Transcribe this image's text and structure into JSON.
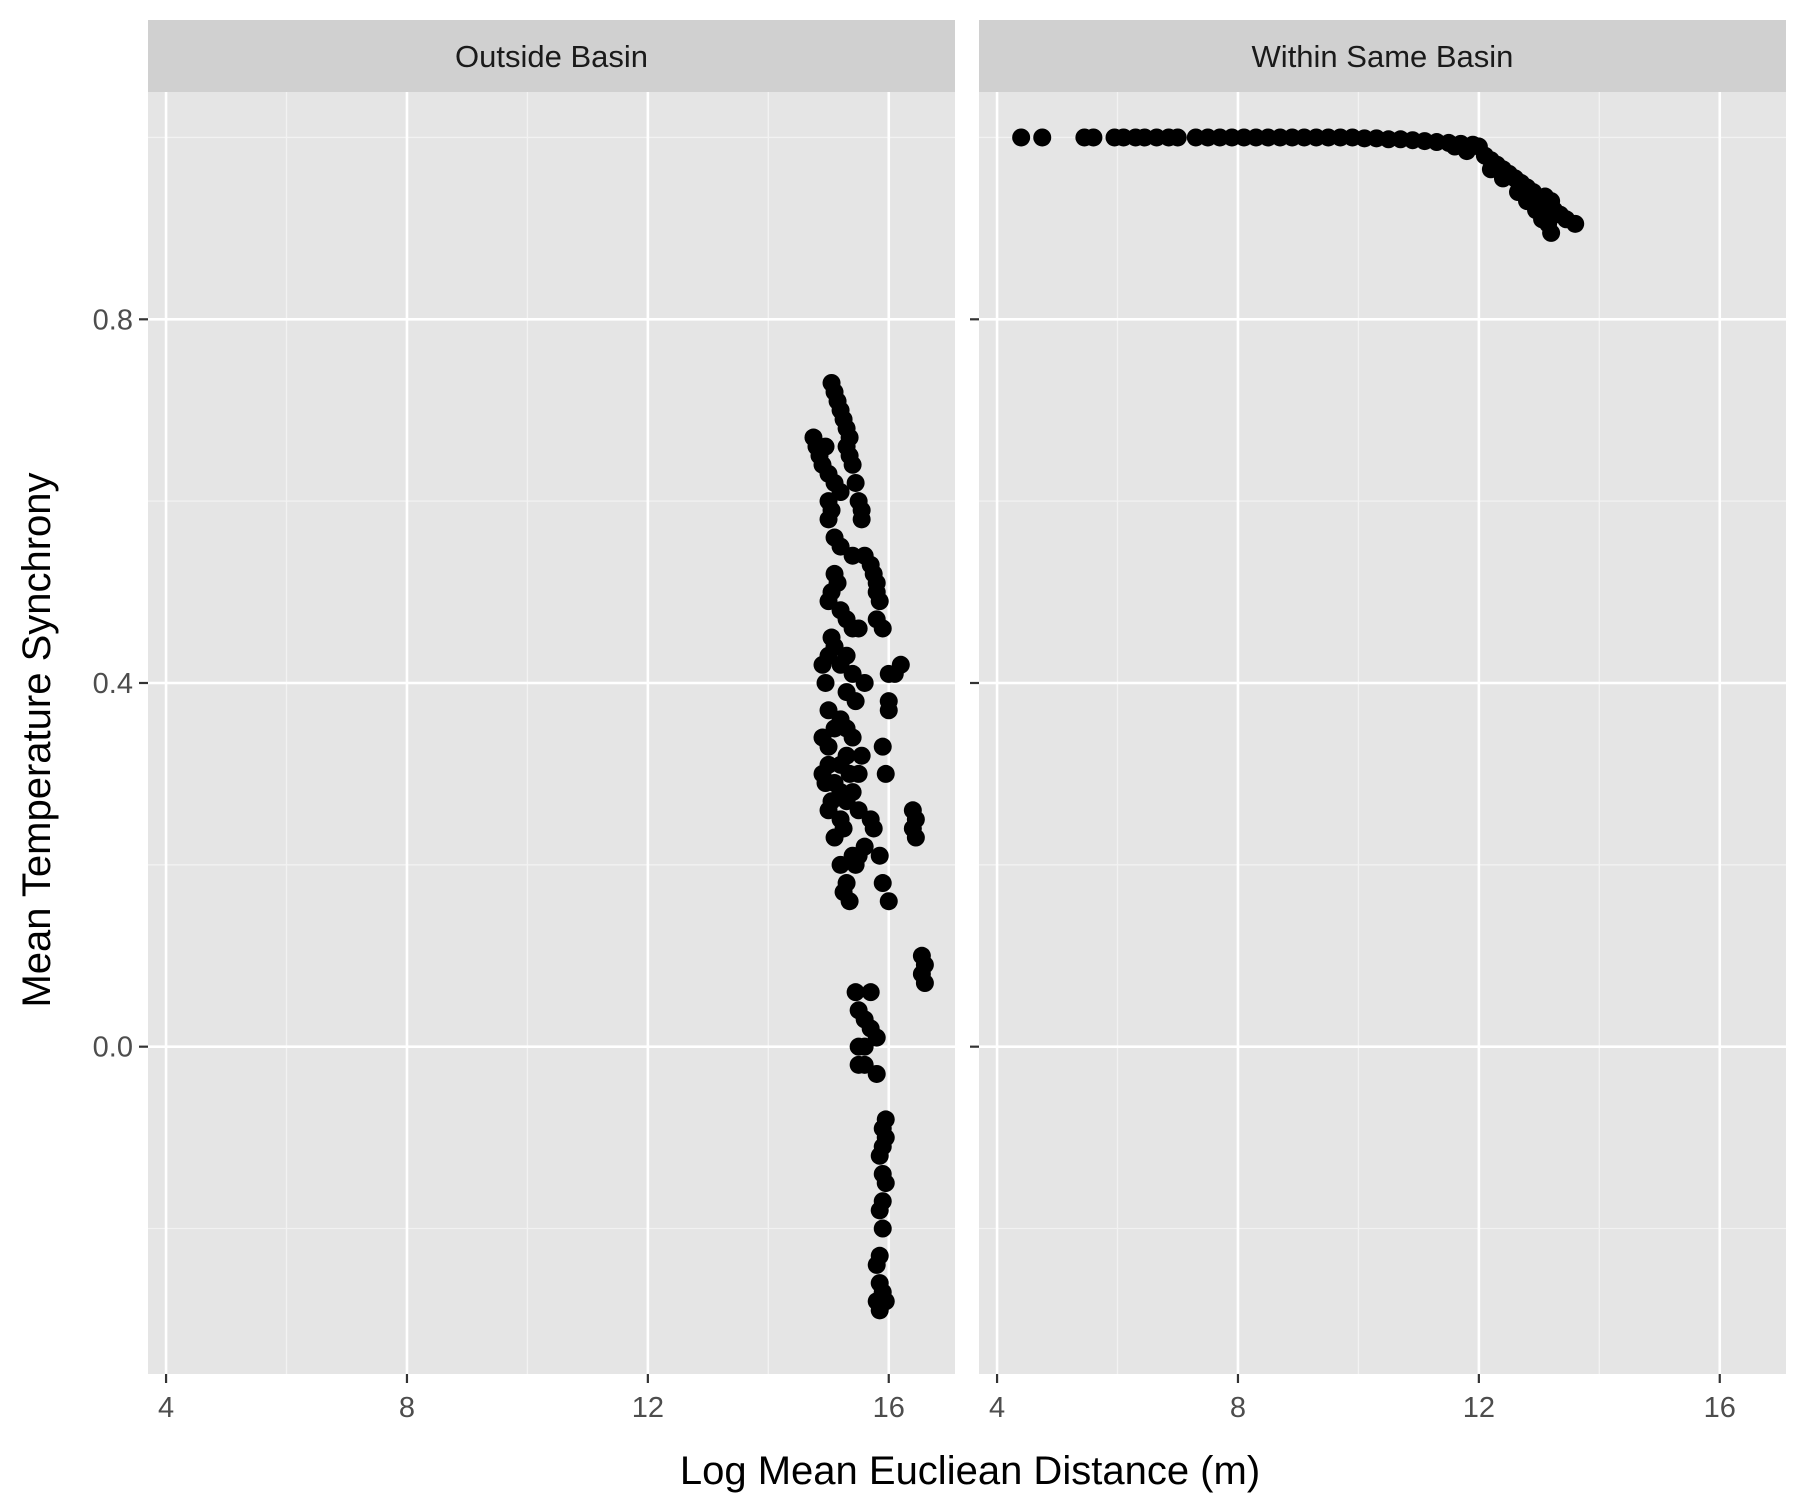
{
  "chart_data": {
    "type": "scatter",
    "xlabel": "Log Mean Eucliean Distance (m)",
    "ylabel": "Mean Temperature Synchrony",
    "xlim": [
      3.7,
      17.1
    ],
    "ylim": [
      -0.36,
      1.05
    ],
    "x_ticks": [
      4,
      8,
      12,
      16
    ],
    "x_tick_labels": [
      "4",
      "8",
      "12",
      "16"
    ],
    "y_ticks": [
      0.0,
      0.4,
      0.8
    ],
    "y_tick_labels": [
      "0.0",
      "0.4",
      "0.8"
    ],
    "grid": true,
    "point_color": "#000000",
    "panel_background": "#e5e5e5",
    "strip_background": "#d0d0d0",
    "panels": [
      {
        "title": "Outside Basin",
        "points": [
          [
            14.75,
            0.67
          ],
          [
            14.8,
            0.66
          ],
          [
            14.85,
            0.65
          ],
          [
            14.9,
            0.64
          ],
          [
            14.95,
            0.66
          ],
          [
            15.0,
            0.63
          ],
          [
            15.05,
            0.73
          ],
          [
            15.1,
            0.72
          ],
          [
            15.15,
            0.71
          ],
          [
            15.2,
            0.7
          ],
          [
            15.25,
            0.69
          ],
          [
            15.3,
            0.68
          ],
          [
            15.35,
            0.67
          ],
          [
            15.3,
            0.66
          ],
          [
            15.35,
            0.65
          ],
          [
            15.4,
            0.64
          ],
          [
            15.45,
            0.62
          ],
          [
            15.5,
            0.6
          ],
          [
            15.55,
            0.59
          ],
          [
            15.55,
            0.58
          ],
          [
            15.1,
            0.62
          ],
          [
            15.2,
            0.61
          ],
          [
            15.0,
            0.6
          ],
          [
            15.05,
            0.59
          ],
          [
            15.0,
            0.58
          ],
          [
            15.1,
            0.56
          ],
          [
            15.2,
            0.55
          ],
          [
            15.4,
            0.54
          ],
          [
            15.6,
            0.54
          ],
          [
            15.7,
            0.53
          ],
          [
            15.75,
            0.52
          ],
          [
            15.8,
            0.51
          ],
          [
            15.8,
            0.5
          ],
          [
            15.85,
            0.49
          ],
          [
            15.1,
            0.52
          ],
          [
            15.15,
            0.51
          ],
          [
            15.05,
            0.5
          ],
          [
            15.0,
            0.49
          ],
          [
            15.2,
            0.48
          ],
          [
            15.3,
            0.47
          ],
          [
            15.4,
            0.46
          ],
          [
            15.5,
            0.46
          ],
          [
            15.8,
            0.47
          ],
          [
            15.9,
            0.46
          ],
          [
            15.05,
            0.45
          ],
          [
            15.1,
            0.44
          ],
          [
            15.0,
            0.43
          ],
          [
            15.3,
            0.43
          ],
          [
            15.2,
            0.42
          ],
          [
            14.9,
            0.42
          ],
          [
            15.4,
            0.41
          ],
          [
            15.6,
            0.4
          ],
          [
            16.0,
            0.41
          ],
          [
            16.1,
            0.41
          ],
          [
            16.2,
            0.42
          ],
          [
            14.95,
            0.4
          ],
          [
            15.3,
            0.39
          ],
          [
            15.45,
            0.38
          ],
          [
            16.0,
            0.38
          ],
          [
            16.0,
            0.37
          ],
          [
            15.0,
            0.37
          ],
          [
            15.2,
            0.36
          ],
          [
            15.3,
            0.35
          ],
          [
            15.1,
            0.35
          ],
          [
            14.9,
            0.34
          ],
          [
            15.4,
            0.34
          ],
          [
            15.0,
            0.33
          ],
          [
            15.3,
            0.32
          ],
          [
            15.55,
            0.32
          ],
          [
            15.9,
            0.33
          ],
          [
            15.2,
            0.31
          ],
          [
            15.0,
            0.31
          ],
          [
            14.9,
            0.3
          ],
          [
            15.35,
            0.3
          ],
          [
            15.5,
            0.3
          ],
          [
            15.95,
            0.3
          ],
          [
            14.95,
            0.29
          ],
          [
            15.1,
            0.29
          ],
          [
            15.2,
            0.28
          ],
          [
            15.4,
            0.28
          ],
          [
            15.05,
            0.27
          ],
          [
            15.3,
            0.27
          ],
          [
            15.0,
            0.26
          ],
          [
            15.2,
            0.25
          ],
          [
            15.5,
            0.26
          ],
          [
            15.7,
            0.25
          ],
          [
            15.75,
            0.24
          ],
          [
            15.25,
            0.24
          ],
          [
            15.1,
            0.23
          ],
          [
            15.6,
            0.22
          ],
          [
            15.4,
            0.21
          ],
          [
            15.5,
            0.21
          ],
          [
            15.2,
            0.2
          ],
          [
            15.45,
            0.2
          ],
          [
            15.3,
            0.18
          ],
          [
            15.25,
            0.17
          ],
          [
            15.35,
            0.16
          ],
          [
            15.85,
            0.21
          ],
          [
            15.9,
            0.18
          ],
          [
            16.0,
            0.16
          ],
          [
            16.4,
            0.26
          ],
          [
            16.45,
            0.25
          ],
          [
            16.4,
            0.24
          ],
          [
            16.45,
            0.23
          ],
          [
            16.55,
            0.1
          ],
          [
            16.6,
            0.09
          ],
          [
            16.55,
            0.08
          ],
          [
            16.6,
            0.07
          ],
          [
            15.45,
            0.06
          ],
          [
            15.7,
            0.06
          ],
          [
            15.5,
            0.04
          ],
          [
            15.6,
            0.03
          ],
          [
            15.7,
            0.02
          ],
          [
            15.8,
            0.01
          ],
          [
            15.5,
            0.0
          ],
          [
            15.6,
            0.0
          ],
          [
            15.5,
            -0.02
          ],
          [
            15.6,
            -0.02
          ],
          [
            15.8,
            -0.03
          ],
          [
            15.95,
            -0.08
          ],
          [
            15.9,
            -0.09
          ],
          [
            15.95,
            -0.1
          ],
          [
            15.9,
            -0.11
          ],
          [
            15.85,
            -0.12
          ],
          [
            15.9,
            -0.14
          ],
          [
            15.95,
            -0.15
          ],
          [
            15.9,
            -0.17
          ],
          [
            15.85,
            -0.18
          ],
          [
            15.9,
            -0.2
          ],
          [
            15.85,
            -0.23
          ],
          [
            15.8,
            -0.24
          ],
          [
            15.85,
            -0.26
          ],
          [
            15.9,
            -0.27
          ],
          [
            15.8,
            -0.28
          ],
          [
            15.85,
            -0.29
          ],
          [
            15.95,
            -0.28
          ]
        ]
      },
      {
        "title": "Within Same Basin",
        "points": [
          [
            4.4,
            1.0
          ],
          [
            4.75,
            1.0
          ],
          [
            5.45,
            1.0
          ],
          [
            5.6,
            1.0
          ],
          [
            5.95,
            1.0
          ],
          [
            6.1,
            1.0
          ],
          [
            6.3,
            1.0
          ],
          [
            6.45,
            1.0
          ],
          [
            6.65,
            1.0
          ],
          [
            6.85,
            1.0
          ],
          [
            7.0,
            1.0
          ],
          [
            7.3,
            1.0
          ],
          [
            7.5,
            1.0
          ],
          [
            7.7,
            1.0
          ],
          [
            7.9,
            1.0
          ],
          [
            8.1,
            1.0
          ],
          [
            8.3,
            1.0
          ],
          [
            8.5,
            1.0
          ],
          [
            8.7,
            1.0
          ],
          [
            8.9,
            1.0
          ],
          [
            9.1,
            1.0
          ],
          [
            9.3,
            1.0
          ],
          [
            9.5,
            1.0
          ],
          [
            9.7,
            1.0
          ],
          [
            9.9,
            1.0
          ],
          [
            10.1,
            0.999
          ],
          [
            10.3,
            0.999
          ],
          [
            10.5,
            0.998
          ],
          [
            10.7,
            0.998
          ],
          [
            10.9,
            0.997
          ],
          [
            11.1,
            0.996
          ],
          [
            11.3,
            0.995
          ],
          [
            11.5,
            0.994
          ],
          [
            11.7,
            0.993
          ],
          [
            11.9,
            0.992
          ],
          [
            12.0,
            0.99
          ],
          [
            11.6,
            0.99
          ],
          [
            11.8,
            0.985
          ],
          [
            12.1,
            0.98
          ],
          [
            12.2,
            0.975
          ],
          [
            12.3,
            0.97
          ],
          [
            12.4,
            0.965
          ],
          [
            12.5,
            0.96
          ],
          [
            12.2,
            0.965
          ],
          [
            12.4,
            0.955
          ],
          [
            12.6,
            0.955
          ],
          [
            12.7,
            0.95
          ],
          [
            12.8,
            0.945
          ],
          [
            12.9,
            0.94
          ],
          [
            12.65,
            0.94
          ],
          [
            12.8,
            0.93
          ],
          [
            13.0,
            0.93
          ],
          [
            13.1,
            0.935
          ],
          [
            13.2,
            0.93
          ],
          [
            13.25,
            0.92
          ],
          [
            12.95,
            0.92
          ],
          [
            13.05,
            0.91
          ],
          [
            13.15,
            0.905
          ],
          [
            13.2,
            0.895
          ],
          [
            13.35,
            0.915
          ],
          [
            13.45,
            0.91
          ],
          [
            13.6,
            0.905
          ],
          [
            13.1,
            0.925
          ],
          [
            12.85,
            0.935
          ]
        ]
      }
    ]
  }
}
